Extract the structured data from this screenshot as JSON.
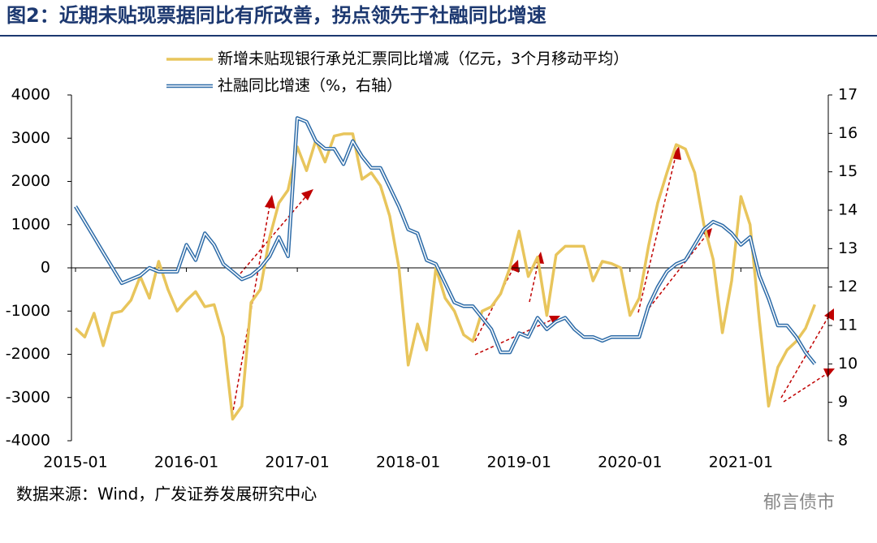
{
  "header": {
    "title": "图2：近期未贴现票据同比有所改善，拐点领先于社融同比增速"
  },
  "chart_data": {
    "type": "line",
    "categories": [
      "2015-01",
      null,
      null,
      null,
      null,
      null,
      null,
      null,
      null,
      null,
      null,
      null,
      "2016-01",
      null,
      null,
      null,
      null,
      null,
      null,
      null,
      null,
      null,
      null,
      null,
      "2017-01",
      null,
      null,
      null,
      null,
      null,
      null,
      null,
      null,
      null,
      null,
      null,
      "2018-01",
      null,
      null,
      null,
      null,
      null,
      null,
      null,
      null,
      null,
      null,
      null,
      "2019-01",
      null,
      null,
      null,
      null,
      null,
      null,
      null,
      null,
      null,
      null,
      null,
      "2020-01",
      null,
      null,
      null,
      null,
      null,
      null,
      null,
      null,
      null,
      null,
      null,
      "2021-01",
      null,
      null,
      null,
      null,
      null,
      null,
      null,
      null
    ],
    "series": [
      {
        "name": "新增未贴现银行承兑汇票同比增减（亿元，3个月移动平均）",
        "color": "#e8c55c",
        "axis": "y",
        "values": [
          -1400,
          -1600,
          -1050,
          -1800,
          -1050,
          -1000,
          -750,
          -200,
          -700,
          150,
          -500,
          -1000,
          -750,
          -550,
          -900,
          -850,
          -1600,
          -3500,
          -3200,
          -800,
          -500,
          700,
          1500,
          1800,
          2800,
          2250,
          2950,
          2450,
          3050,
          3100,
          3100,
          2050,
          2200,
          1900,
          1200,
          0,
          -2250,
          -1300,
          -1900,
          0,
          -700,
          -1000,
          -1550,
          -1700,
          -1000,
          -900,
          -600,
          0,
          850,
          -200,
          250,
          -1100,
          300,
          500,
          500,
          500,
          -300,
          150,
          100,
          0,
          -1100,
          -700,
          500,
          1500,
          2200,
          2850,
          2750,
          2200,
          1000,
          200,
          -1500,
          -300,
          1650,
          1000,
          -1200,
          -3200,
          -2300,
          -1900,
          -1700,
          -1400,
          -850
        ]
      },
      {
        "name": "社融同比增速（%，右轴）",
        "color": "#2e6ca8",
        "axis": "y2",
        "values": [
          14.1,
          13.7,
          13.3,
          12.9,
          12.5,
          12.1,
          12.2,
          12.3,
          12.5,
          12.4,
          12.4,
          12.4,
          13.1,
          12.7,
          13.4,
          13.1,
          12.6,
          12.4,
          12.2,
          12.3,
          12.5,
          12.8,
          13.3,
          12.8,
          16.4,
          16.3,
          15.8,
          15.6,
          15.6,
          15.2,
          15.8,
          15.4,
          15.1,
          15.1,
          14.6,
          14.1,
          13.5,
          13.4,
          12.7,
          12.6,
          12.1,
          11.6,
          11.5,
          11.5,
          11.2,
          10.9,
          10.3,
          10.3,
          10.8,
          10.7,
          11.2,
          10.9,
          11.1,
          11.2,
          10.9,
          10.7,
          10.7,
          10.6,
          10.7,
          10.7,
          10.7,
          10.7,
          11.5,
          12.0,
          12.4,
          12.6,
          12.7,
          13.1,
          13.5,
          13.7,
          13.6,
          13.4,
          13.1,
          13.3,
          12.3,
          11.7,
          11.0,
          11.0,
          10.7,
          10.3,
          10.0
        ]
      }
    ],
    "ylim": [
      -4000,
      4000
    ],
    "yticks": [
      -4000,
      -3000,
      -2000,
      -1000,
      0,
      1000,
      2000,
      3000,
      4000
    ],
    "y2lim": [
      8,
      17
    ],
    "y2ticks": [
      8,
      9,
      10,
      11,
      12,
      13,
      14,
      15,
      16,
      17
    ]
  },
  "footer": {
    "source": "数据来源：Wind，广发证券发展研究中心",
    "watermark": "郁言债市"
  }
}
